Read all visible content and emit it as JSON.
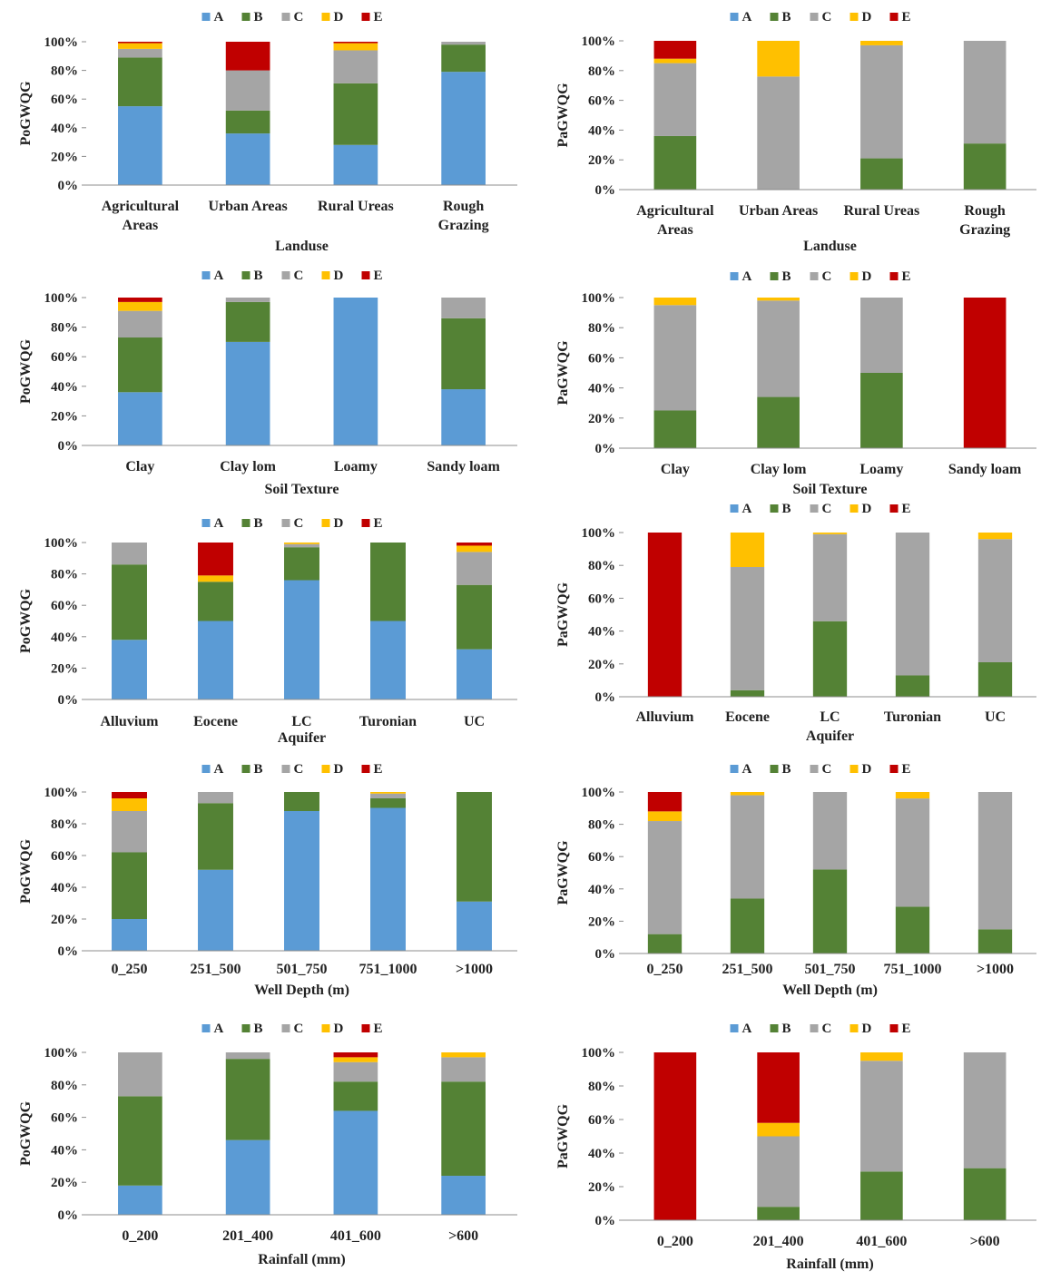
{
  "figure": {
    "legend_labels": [
      "A",
      "B",
      "C",
      "D",
      "E"
    ],
    "colors": {
      "A": "#5b9bd5",
      "B": "#548235",
      "C": "#a5a5a5",
      "D": "#ffc000",
      "E": "#c00000"
    }
  },
  "chart_data": [
    {
      "id": "landuse-po",
      "type": "bar",
      "stacked": true,
      "percent": true,
      "title": "",
      "ylabel": "PoGWQG",
      "xlabel": "Landuse",
      "ylim": [
        0,
        100
      ],
      "yticks": [
        "0%",
        "20%",
        "40%",
        "60%",
        "80%",
        "100%"
      ],
      "categories": [
        [
          "Agricultural",
          "Areas"
        ],
        [
          "Urban Areas"
        ],
        [
          "Rural Ureas"
        ],
        [
          "Rough",
          "Grazing"
        ]
      ],
      "series": [
        {
          "name": "A",
          "values": [
            55,
            36,
            28,
            79
          ]
        },
        {
          "name": "B",
          "values": [
            34,
            16,
            43,
            19
          ]
        },
        {
          "name": "C",
          "values": [
            6,
            28,
            23,
            2
          ]
        },
        {
          "name": "D",
          "values": [
            4,
            0,
            5,
            0
          ]
        },
        {
          "name": "E",
          "values": [
            1,
            20,
            1,
            0
          ]
        }
      ]
    },
    {
      "id": "landuse-pa",
      "type": "bar",
      "stacked": true,
      "percent": true,
      "title": "",
      "ylabel": "PaGWQG",
      "xlabel": "Landuse",
      "ylim": [
        0,
        100
      ],
      "yticks": [
        "0%",
        "20%",
        "40%",
        "60%",
        "80%",
        "100%"
      ],
      "categories": [
        [
          "Agricultural",
          "Areas"
        ],
        [
          "Urban Areas"
        ],
        [
          "Rural Ureas"
        ],
        [
          "Rough",
          "Grazing"
        ]
      ],
      "series": [
        {
          "name": "A",
          "values": [
            0,
            0,
            0,
            0
          ]
        },
        {
          "name": "B",
          "values": [
            36,
            0,
            21,
            31
          ]
        },
        {
          "name": "C",
          "values": [
            49,
            76,
            76,
            69
          ]
        },
        {
          "name": "D",
          "values": [
            3,
            24,
            3,
            0
          ]
        },
        {
          "name": "E",
          "values": [
            12,
            0,
            0,
            0
          ]
        }
      ]
    },
    {
      "id": "soil-po",
      "type": "bar",
      "stacked": true,
      "percent": true,
      "title": "",
      "ylabel": "PoGWQG",
      "xlabel": "Soil Texture",
      "ylim": [
        0,
        100
      ],
      "yticks": [
        "0%",
        "20%",
        "40%",
        "60%",
        "80%",
        "100%"
      ],
      "categories": [
        [
          "Clay"
        ],
        [
          "Clay lom"
        ],
        [
          "Loamy"
        ],
        [
          "Sandy loam"
        ]
      ],
      "series": [
        {
          "name": "A",
          "values": [
            36,
            70,
            100,
            38
          ]
        },
        {
          "name": "B",
          "values": [
            37,
            27,
            0,
            48
          ]
        },
        {
          "name": "C",
          "values": [
            18,
            3,
            0,
            14
          ]
        },
        {
          "name": "D",
          "values": [
            6,
            0,
            0,
            0
          ]
        },
        {
          "name": "E",
          "values": [
            3,
            0,
            0,
            0
          ]
        }
      ]
    },
    {
      "id": "soil-pa",
      "type": "bar",
      "stacked": true,
      "percent": true,
      "title": "",
      "ylabel": "PaGWQG",
      "xlabel": "Soil Texture",
      "ylim": [
        0,
        100
      ],
      "yticks": [
        "0%",
        "20%",
        "40%",
        "60%",
        "80%",
        "100%"
      ],
      "categories": [
        [
          "Clay"
        ],
        [
          "Clay lom"
        ],
        [
          "Loamy"
        ],
        [
          "Sandy loam"
        ]
      ],
      "series": [
        {
          "name": "A",
          "values": [
            0,
            0,
            0,
            0
          ]
        },
        {
          "name": "B",
          "values": [
            25,
            34,
            50,
            0
          ]
        },
        {
          "name": "C",
          "values": [
            70,
            64,
            50,
            0
          ]
        },
        {
          "name": "D",
          "values": [
            5,
            2,
            0,
            0
          ]
        },
        {
          "name": "E",
          "values": [
            0,
            0,
            0,
            100
          ]
        }
      ]
    },
    {
      "id": "aquifer-po",
      "type": "bar",
      "stacked": true,
      "percent": true,
      "title": "",
      "ylabel": "PoGWQG",
      "xlabel": "Aquifer",
      "ylim": [
        0,
        100
      ],
      "yticks": [
        "0%",
        "20%",
        "40%",
        "60%",
        "80%",
        "100%"
      ],
      "categories": [
        [
          "Alluvium"
        ],
        [
          "Eocene"
        ],
        [
          "LC"
        ],
        [
          "Turonian"
        ],
        [
          "UC"
        ]
      ],
      "series": [
        {
          "name": "A",
          "values": [
            38,
            50,
            76,
            50,
            32
          ]
        },
        {
          "name": "B",
          "values": [
            48,
            25,
            21,
            50,
            41
          ]
        },
        {
          "name": "C",
          "values": [
            14,
            0,
            2,
            0,
            21
          ]
        },
        {
          "name": "D",
          "values": [
            0,
            4,
            1,
            0,
            4
          ]
        },
        {
          "name": "E",
          "values": [
            0,
            21,
            0,
            0,
            2
          ]
        }
      ]
    },
    {
      "id": "aquifer-pa",
      "type": "bar",
      "stacked": true,
      "percent": true,
      "title": "",
      "ylabel": "PaGWQG",
      "xlabel": "Aquifer",
      "ylim": [
        0,
        100
      ],
      "yticks": [
        "0%",
        "20%",
        "40%",
        "60%",
        "80%",
        "100%"
      ],
      "categories": [
        [
          "Alluvium"
        ],
        [
          "Eocene"
        ],
        [
          "LC"
        ],
        [
          "Turonian"
        ],
        [
          "UC"
        ]
      ],
      "series": [
        {
          "name": "A",
          "values": [
            0,
            0,
            0,
            0,
            0
          ]
        },
        {
          "name": "B",
          "values": [
            0,
            4,
            46,
            13,
            21
          ]
        },
        {
          "name": "C",
          "values": [
            0,
            75,
            53,
            87,
            75
          ]
        },
        {
          "name": "D",
          "values": [
            0,
            21,
            1,
            0,
            4
          ]
        },
        {
          "name": "E",
          "values": [
            100,
            0,
            0,
            0,
            0
          ]
        }
      ]
    },
    {
      "id": "depth-po",
      "type": "bar",
      "stacked": true,
      "percent": true,
      "title": "",
      "ylabel": "PoGWQG",
      "xlabel": "Well Depth (m)",
      "ylim": [
        0,
        100
      ],
      "yticks": [
        "0%",
        "20%",
        "40%",
        "60%",
        "80%",
        "100%"
      ],
      "categories": [
        [
          "0_250"
        ],
        [
          "251_500"
        ],
        [
          "501_750"
        ],
        [
          "751_1000"
        ],
        [
          ">1000"
        ]
      ],
      "series": [
        {
          "name": "A",
          "values": [
            20,
            51,
            88,
            90,
            31
          ]
        },
        {
          "name": "B",
          "values": [
            42,
            42,
            12,
            6,
            69
          ]
        },
        {
          "name": "C",
          "values": [
            26,
            7,
            0,
            3,
            0
          ]
        },
        {
          "name": "D",
          "values": [
            8,
            0,
            0,
            1,
            0
          ]
        },
        {
          "name": "E",
          "values": [
            4,
            0,
            0,
            0,
            0
          ]
        }
      ]
    },
    {
      "id": "depth-pa",
      "type": "bar",
      "stacked": true,
      "percent": true,
      "title": "",
      "ylabel": "PaGWQG",
      "xlabel": "Well Depth (m)",
      "ylim": [
        0,
        100
      ],
      "yticks": [
        "0%",
        "20%",
        "40%",
        "60%",
        "80%",
        "100%"
      ],
      "categories": [
        [
          "0_250"
        ],
        [
          "251_500"
        ],
        [
          "501_750"
        ],
        [
          "751_1000"
        ],
        [
          ">1000"
        ]
      ],
      "series": [
        {
          "name": "A",
          "values": [
            0,
            0,
            0,
            0,
            0
          ]
        },
        {
          "name": "B",
          "values": [
            12,
            34,
            52,
            29,
            15
          ]
        },
        {
          "name": "C",
          "values": [
            70,
            64,
            48,
            67,
            85
          ]
        },
        {
          "name": "D",
          "values": [
            6,
            2,
            0,
            4,
            0
          ]
        },
        {
          "name": "E",
          "values": [
            12,
            0,
            0,
            0,
            0
          ]
        }
      ]
    },
    {
      "id": "rain-po",
      "type": "bar",
      "stacked": true,
      "percent": true,
      "title": "",
      "ylabel": "PoGWQG",
      "xlabel": "Rainfall (mm)",
      "ylim": [
        0,
        100
      ],
      "yticks": [
        "0%",
        "20%",
        "40%",
        "60%",
        "80%",
        "100%"
      ],
      "categories": [
        [
          "0_200"
        ],
        [
          "201_400"
        ],
        [
          "401_600"
        ],
        [
          ">600"
        ]
      ],
      "series": [
        {
          "name": "A",
          "values": [
            18,
            46,
            64,
            24
          ]
        },
        {
          "name": "B",
          "values": [
            55,
            50,
            18,
            58
          ]
        },
        {
          "name": "C",
          "values": [
            27,
            4,
            12,
            15
          ]
        },
        {
          "name": "D",
          "values": [
            0,
            0,
            3,
            3
          ]
        },
        {
          "name": "E",
          "values": [
            0,
            0,
            3,
            0
          ]
        }
      ]
    },
    {
      "id": "rain-pa",
      "type": "bar",
      "stacked": true,
      "percent": true,
      "title": "",
      "ylabel": "PaGWQG",
      "xlabel": "Rainfall (mm)",
      "ylim": [
        0,
        100
      ],
      "yticks": [
        "0%",
        "20%",
        "40%",
        "60%",
        "80%",
        "100%"
      ],
      "categories": [
        [
          "0_200"
        ],
        [
          "201_400"
        ],
        [
          "401_600"
        ],
        [
          ">600"
        ]
      ],
      "series": [
        {
          "name": "A",
          "values": [
            0,
            0,
            0,
            0
          ]
        },
        {
          "name": "B",
          "values": [
            0,
            8,
            29,
            31
          ]
        },
        {
          "name": "C",
          "values": [
            0,
            42,
            66,
            69
          ]
        },
        {
          "name": "D",
          "values": [
            0,
            8,
            5,
            0
          ]
        },
        {
          "name": "E",
          "values": [
            100,
            42,
            0,
            0
          ]
        }
      ]
    }
  ]
}
